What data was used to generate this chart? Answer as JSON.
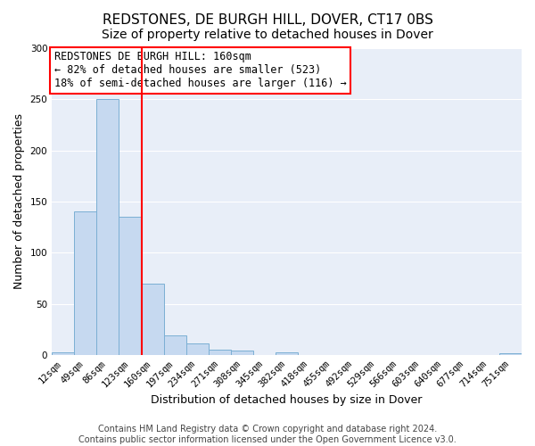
{
  "title": "REDSTONES, DE BURGH HILL, DOVER, CT17 0BS",
  "subtitle": "Size of property relative to detached houses in Dover",
  "xlabel": "Distribution of detached houses by size in Dover",
  "ylabel": "Number of detached properties",
  "bar_labels": [
    "12sqm",
    "49sqm",
    "86sqm",
    "123sqm",
    "160sqm",
    "197sqm",
    "234sqm",
    "271sqm",
    "308sqm",
    "345sqm",
    "382sqm",
    "418sqm",
    "455sqm",
    "492sqm",
    "529sqm",
    "566sqm",
    "603sqm",
    "640sqm",
    "677sqm",
    "714sqm",
    "751sqm"
  ],
  "bar_values": [
    3,
    140,
    250,
    135,
    70,
    19,
    11,
    5,
    4,
    0,
    3,
    0,
    0,
    0,
    0,
    0,
    0,
    0,
    0,
    0,
    2
  ],
  "bar_color": "#c6d9f0",
  "bar_edgecolor": "#7bafd4",
  "vline_index": 4,
  "vline_color": "red",
  "annotation_line1": "REDSTONES DE BURGH HILL: 160sqm",
  "annotation_line2": "← 82% of detached houses are smaller (523)",
  "annotation_line3": "18% of semi-detached houses are larger (116) →",
  "annotation_box_color": "red",
  "annotation_box_facecolor": "white",
  "ylim": [
    0,
    300
  ],
  "yticks": [
    0,
    50,
    100,
    150,
    200,
    250,
    300
  ],
  "footer_line1": "Contains HM Land Registry data © Crown copyright and database right 2024.",
  "footer_line2": "Contains public sector information licensed under the Open Government Licence v3.0.",
  "background_color": "#ffffff",
  "plot_background_color": "#e8eef8",
  "grid_color": "#ffffff",
  "title_fontsize": 11,
  "subtitle_fontsize": 10,
  "axis_label_fontsize": 9,
  "tick_fontsize": 7.5,
  "annotation_fontsize": 8.5,
  "footer_fontsize": 7
}
